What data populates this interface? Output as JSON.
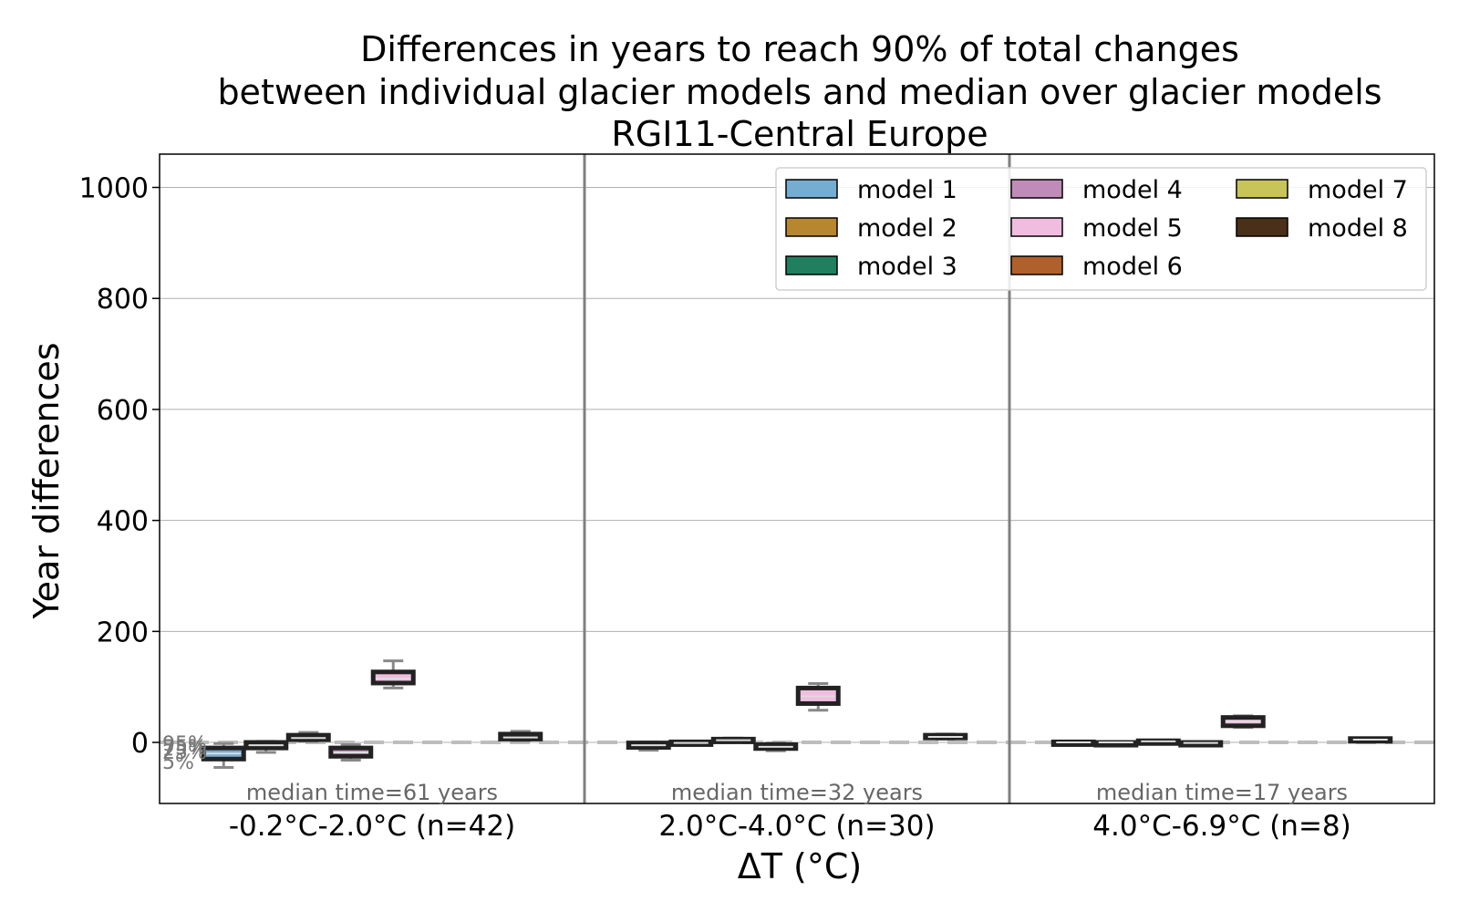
{
  "chart_data": {
    "type": "box",
    "title_lines": [
      "Differences in years to reach 90% of total changes",
      "between individual glacier models and median over glacier models",
      "RGI11-Central Europe"
    ],
    "xlabel": "ΔT (°C)",
    "ylabel": "Year differences",
    "ylim": [
      -110,
      1060
    ],
    "yticks": [
      0,
      200,
      400,
      600,
      800,
      1000
    ],
    "grid": true,
    "legend_position": "top-right",
    "percentile_labels": [
      "95%",
      "75%",
      "25%",
      "5%"
    ],
    "series": [
      {
        "name": "model 1",
        "color": "#74add1"
      },
      {
        "name": "model 2",
        "color": "#b8862f"
      },
      {
        "name": "model 3",
        "color": "#1f7f5f"
      },
      {
        "name": "model 4",
        "color": "#c08bb8"
      },
      {
        "name": "model 5",
        "color": "#f0bde0"
      },
      {
        "name": "model 6",
        "color": "#b0602a"
      },
      {
        "name": "model 7",
        "color": "#c9c45a"
      },
      {
        "name": "model 8",
        "color": "#4a3018"
      }
    ],
    "groups": [
      {
        "label": "-0.2°C-2.0°C (n=42)",
        "median_note": "median time=61 years",
        "boxes": [
          {
            "p5": -45,
            "q1": -30,
            "median": -20,
            "q3": -10,
            "p95": -2
          },
          {
            "p5": -18,
            "q1": -10,
            "median": -5,
            "q3": 0,
            "p95": 2
          },
          {
            "p5": 2,
            "q1": 5,
            "median": 8,
            "q3": 13,
            "p95": 18
          },
          {
            "p5": -32,
            "q1": -25,
            "median": -18,
            "q3": -10,
            "p95": -4
          },
          {
            "p5": 98,
            "q1": 107,
            "median": 115,
            "q3": 127,
            "p95": 147
          },
          null,
          null,
          {
            "p5": 3,
            "q1": 6,
            "median": 9,
            "q3": 15,
            "p95": 20
          }
        ]
      },
      {
        "label": "2.0°C-4.0°C (n=30)",
        "median_note": "median time=32 years",
        "boxes": [
          {
            "p5": -14,
            "q1": -9,
            "median": -5,
            "q3": -1,
            "p95": 1
          },
          {
            "p5": -5,
            "q1": -3,
            "median": -1,
            "q3": 1,
            "p95": 2
          },
          {
            "p5": 1,
            "q1": 2,
            "median": 4,
            "q3": 6,
            "p95": 8
          },
          {
            "p5": -15,
            "q1": -11,
            "median": -8,
            "q3": -4,
            "p95": -1
          },
          {
            "p5": 58,
            "q1": 70,
            "median": 83,
            "q3": 98,
            "p95": 106
          },
          null,
          null,
          {
            "p5": 6,
            "q1": 8,
            "median": 10,
            "q3": 13,
            "p95": 15
          }
        ]
      },
      {
        "label": "4.0°C-6.9°C (n=8)",
        "median_note": "median time=17 years",
        "boxes": [
          {
            "p5": -2,
            "q1": -1,
            "median": 0,
            "q3": 1,
            "p95": 2
          },
          {
            "p5": -2,
            "q1": -1,
            "median": 0,
            "q3": 0,
            "p95": 1
          },
          {
            "p5": 0,
            "q1": 1,
            "median": 2,
            "q3": 3,
            "p95": 4
          },
          {
            "p5": -4,
            "q1": -2,
            "median": -1,
            "q3": 0,
            "p95": 1
          },
          {
            "p5": 27,
            "q1": 30,
            "median": 38,
            "q3": 45,
            "p95": 48
          },
          null,
          null,
          {
            "p5": 2,
            "q1": 3,
            "median": 5,
            "q3": 7,
            "p95": 8
          }
        ]
      }
    ]
  }
}
